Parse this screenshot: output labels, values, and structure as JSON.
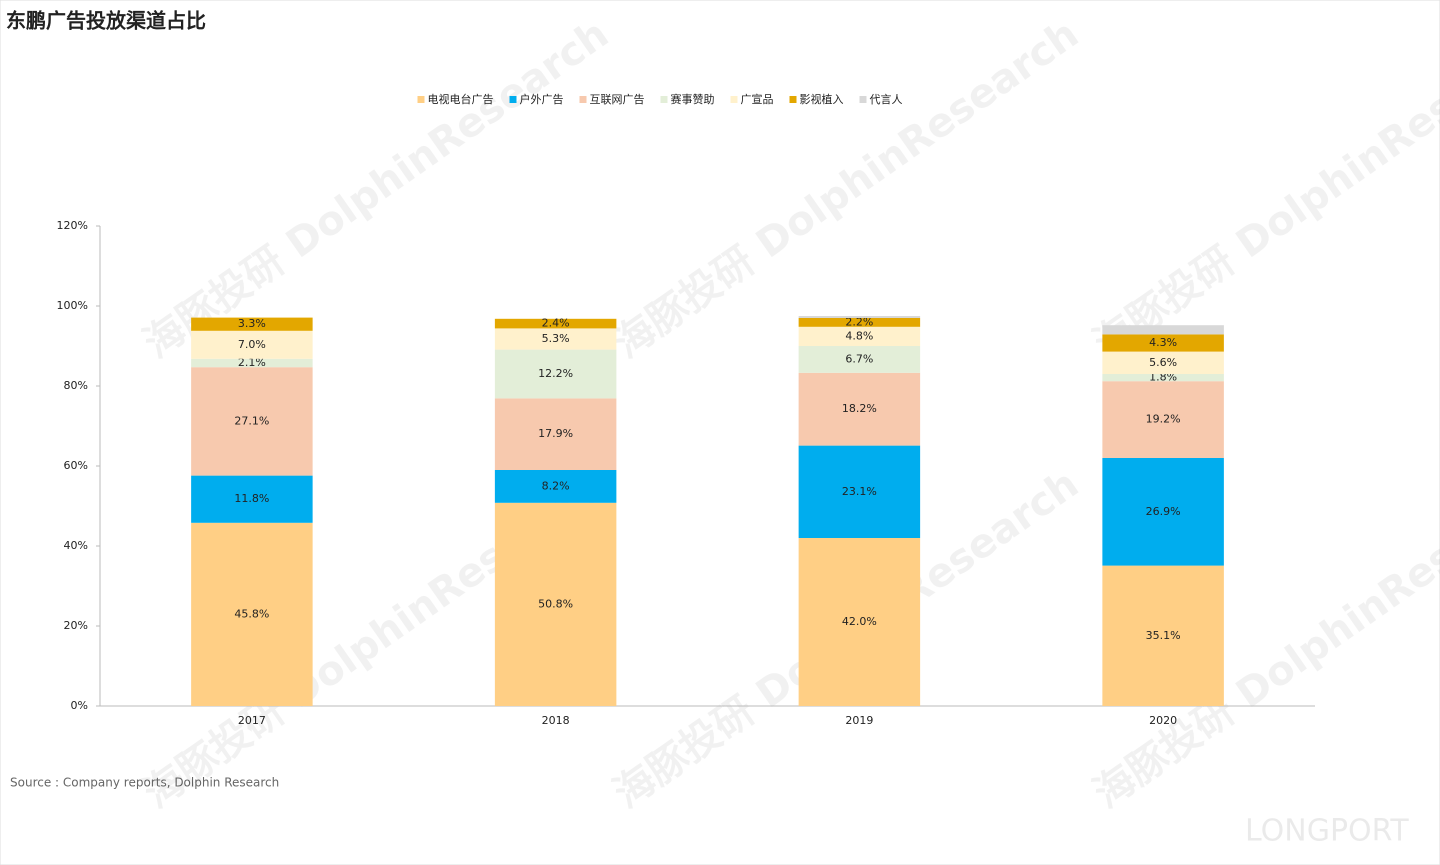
{
  "chart_data": {
    "type": "stacked_bar",
    "title": "东鹏广告投放渠道占比",
    "categories": [
      "2017",
      "2018",
      "2019",
      "2020"
    ],
    "series": [
      {
        "name": "电视电台广告",
        "color": "#FFCF85",
        "values": [
          45.8,
          50.8,
          42.0,
          35.1
        ],
        "value_labels": [
          "45.8%",
          "50.8%",
          "42.0%",
          "35.1%"
        ]
      },
      {
        "name": "户外广告",
        "color": "#00ADEE",
        "values": [
          11.8,
          8.2,
          23.1,
          26.9
        ],
        "value_labels": [
          "11.8%",
          "8.2%",
          "23.1%",
          "26.9%"
        ]
      },
      {
        "name": "互联网广告",
        "color": "#F7C9AE",
        "values": [
          27.1,
          17.9,
          18.2,
          19.2
        ],
        "value_labels": [
          "27.1%",
          "17.9%",
          "18.2%",
          "19.2%"
        ]
      },
      {
        "name": "赛事赞助",
        "color": "#E3EED8",
        "values": [
          2.1,
          12.2,
          6.7,
          1.8
        ],
        "value_labels": [
          "2.1%",
          "12.2%",
          "6.7%",
          "1.8%"
        ]
      },
      {
        "name": "广宣品",
        "color": "#FFF1CC",
        "values": [
          7.0,
          5.3,
          4.8,
          5.6
        ],
        "value_labels": [
          "7.0%",
          "5.3%",
          "4.8%",
          "5.6%"
        ]
      },
      {
        "name": "影视植入",
        "color": "#E3A700",
        "values": [
          3.3,
          2.4,
          2.2,
          4.3
        ],
        "value_labels": [
          "3.3%",
          "2.4%",
          "2.2%",
          "4.3%"
        ]
      },
      {
        "name": "代言人",
        "color": "#D8D8D8",
        "values": [
          0,
          0,
          0.5,
          2.3
        ]
      }
    ],
    "ylim": [
      0,
      120
    ],
    "yticks": [
      {
        "value": 0,
        "label": "0%"
      },
      {
        "value": 20,
        "label": "20%"
      },
      {
        "value": 40,
        "label": "40%"
      },
      {
        "value": 60,
        "label": "60%"
      },
      {
        "value": 80,
        "label": "80%"
      },
      {
        "value": 100,
        "label": "100%"
      },
      {
        "value": 120,
        "label": "120%"
      }
    ],
    "legend": "top",
    "source": "Source : Company reports, Dolphin Research",
    "watermark": "海豚投研 DolphinResearch",
    "logo": "LONGPORT"
  }
}
